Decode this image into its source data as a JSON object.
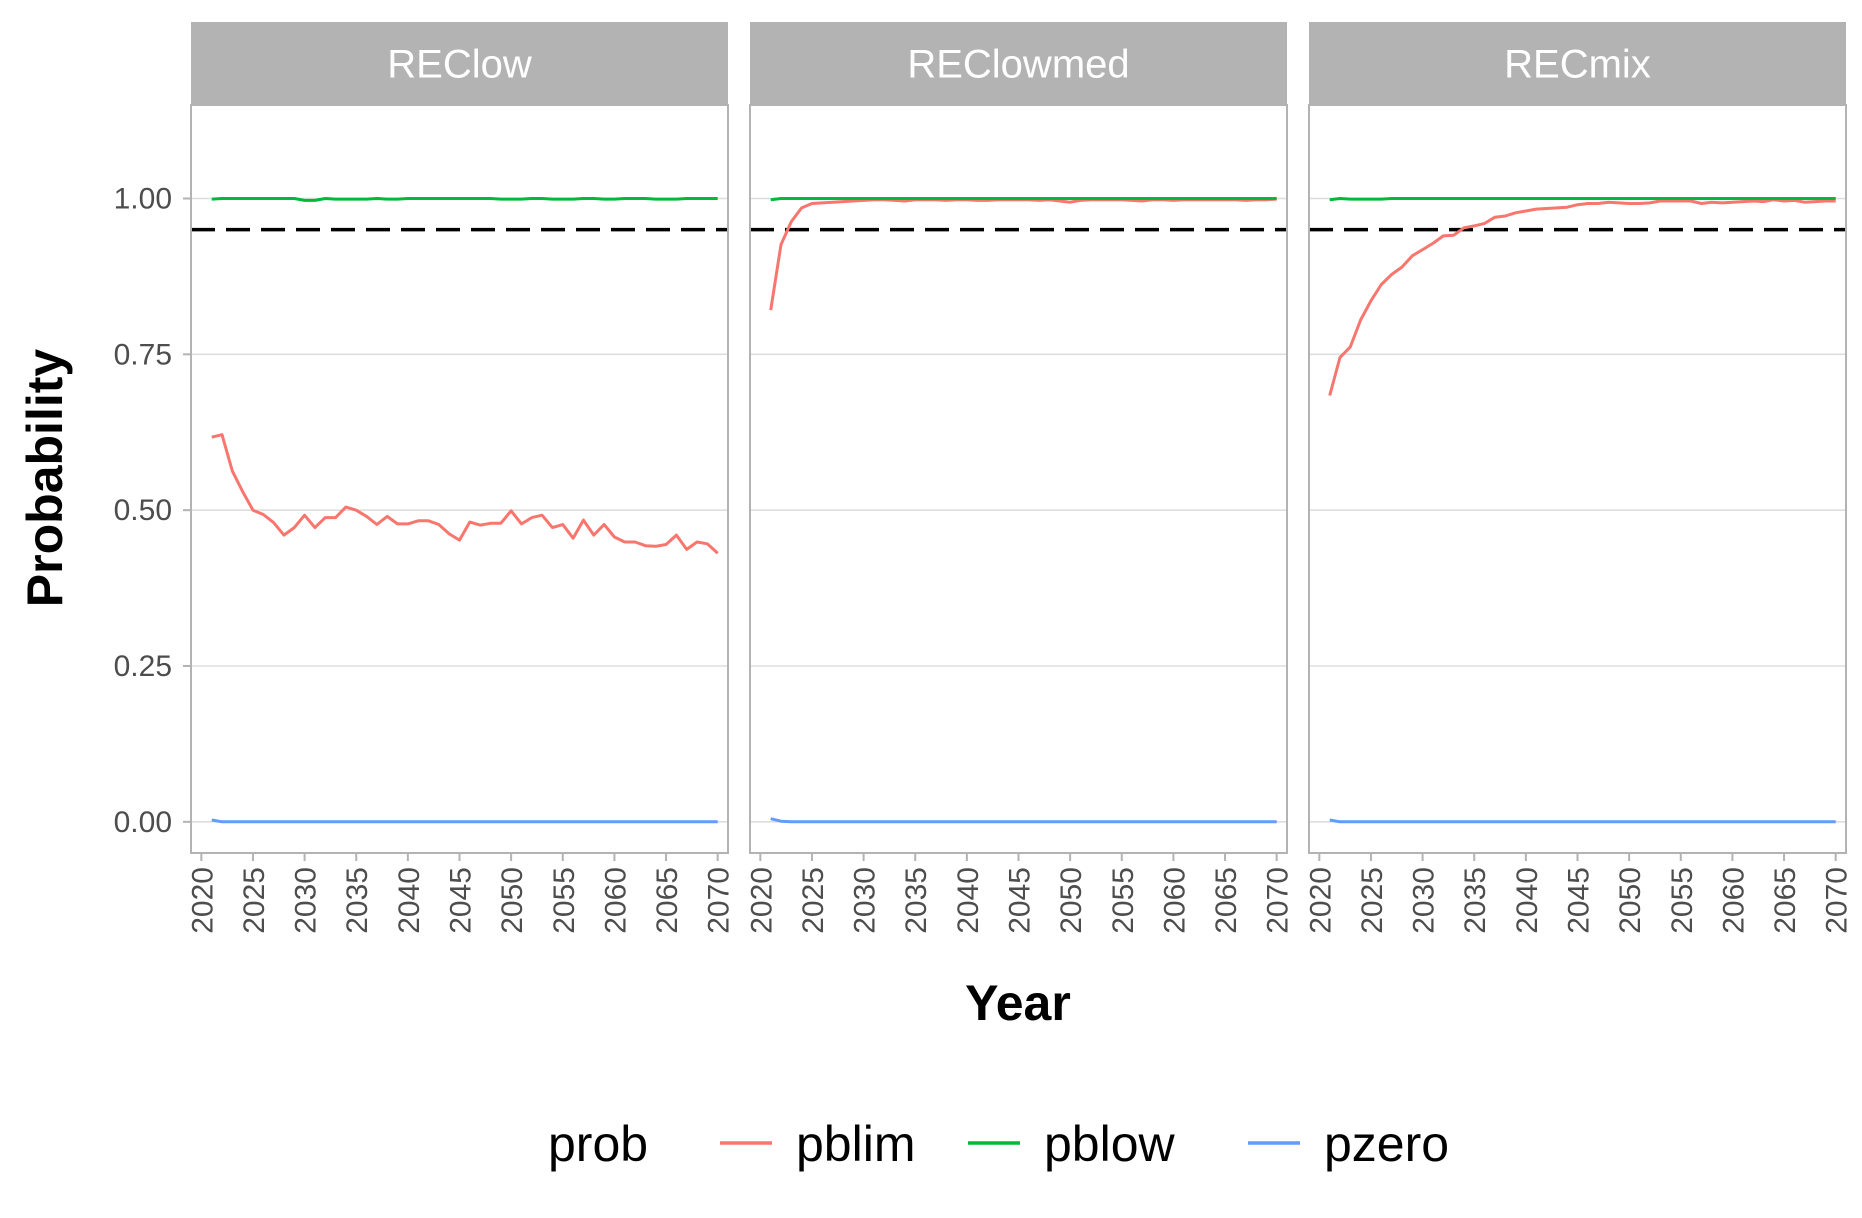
{
  "chart_data": {
    "type": "line",
    "panels": [
      "REClow",
      "REClowmed",
      "RECmix"
    ],
    "xlabel": "Year",
    "ylabel": "Probability",
    "xlim": [
      2019,
      2071
    ],
    "ylim": [
      -0.05,
      1.15
    ],
    "x_ticks": [
      "2020",
      "2025",
      "2030",
      "2035",
      "2040",
      "2045",
      "2050",
      "2055",
      "2060",
      "2065",
      "2070"
    ],
    "y_ticks": [
      "0.00",
      "0.25",
      "0.50",
      "0.75",
      "1.00"
    ],
    "reference_line": {
      "y": 0.95,
      "style": "dashed",
      "color": "#000000"
    },
    "grid": true,
    "legend": {
      "title": "prob",
      "position": "bottom",
      "entries": [
        "pblim",
        "pblow",
        "pzero"
      ]
    },
    "series_colors": {
      "pblim": "#F8766D",
      "pblow": "#00BA38",
      "pzero": "#619CFF"
    },
    "x": [
      2021,
      2022,
      2023,
      2024,
      2025,
      2026,
      2027,
      2028,
      2029,
      2030,
      2031,
      2032,
      2033,
      2034,
      2035,
      2036,
      2037,
      2038,
      2039,
      2040,
      2041,
      2042,
      2043,
      2044,
      2045,
      2046,
      2047,
      2048,
      2049,
      2050,
      2051,
      2052,
      2053,
      2054,
      2055,
      2056,
      2057,
      2058,
      2059,
      2060,
      2061,
      2062,
      2063,
      2064,
      2065,
      2066,
      2067,
      2068,
      2069,
      2070
    ],
    "facets": [
      {
        "panel": "REClow",
        "series": [
          {
            "name": "pblim",
            "values": [
              0.617,
              0.621,
              0.563,
              0.53,
              0.5,
              0.493,
              0.48,
              0.46,
              0.472,
              0.492,
              0.472,
              0.488,
              0.488,
              0.505,
              0.5,
              0.49,
              0.477,
              0.49,
              0.478,
              0.478,
              0.483,
              0.483,
              0.477,
              0.462,
              0.452,
              0.481,
              0.476,
              0.479,
              0.479,
              0.499,
              0.478,
              0.488,
              0.492,
              0.472,
              0.477,
              0.455,
              0.484,
              0.46,
              0.477,
              0.457,
              0.449,
              0.449,
              0.443,
              0.442,
              0.445,
              0.46,
              0.437,
              0.449,
              0.446,
              0.431
            ]
          },
          {
            "name": "pblow",
            "values": [
              0.999,
              1.0,
              1.0,
              1.0,
              1.0,
              1.0,
              1.0,
              1.0,
              1.0,
              0.997,
              0.997,
              1.0,
              0.999,
              0.999,
              0.999,
              0.999,
              1.0,
              0.999,
              0.999,
              1.0,
              1.0,
              1.0,
              1.0,
              1.0,
              1.0,
              1.0,
              1.0,
              1.0,
              0.999,
              0.999,
              0.999,
              1.0,
              1.0,
              0.999,
              0.999,
              0.999,
              1.0,
              1.0,
              0.999,
              0.999,
              1.0,
              1.0,
              1.0,
              0.999,
              0.999,
              0.999,
              1.0,
              1.0,
              1.0,
              1.0
            ]
          },
          {
            "name": "pzero",
            "values": [
              0.003,
              0,
              0,
              0,
              0,
              0,
              0,
              0,
              0,
              0,
              0,
              0,
              0,
              0,
              0,
              0,
              0,
              0,
              0,
              0,
              0,
              0,
              0,
              0,
              0,
              0,
              0,
              0,
              0,
              0,
              0,
              0,
              0,
              0,
              0,
              0,
              0,
              0,
              0,
              0,
              0,
              0,
              0,
              0,
              0,
              0,
              0,
              0,
              0,
              0
            ]
          }
        ]
      },
      {
        "panel": "REClowmed",
        "series": [
          {
            "name": "pblim",
            "values": [
              0.821,
              0.926,
              0.963,
              0.985,
              0.992,
              0.993,
              0.994,
              0.995,
              0.996,
              0.997,
              0.998,
              0.998,
              0.997,
              0.996,
              0.998,
              0.998,
              0.998,
              0.997,
              0.998,
              0.998,
              0.997,
              0.997,
              0.998,
              0.998,
              0.998,
              0.998,
              0.997,
              0.998,
              0.996,
              0.994,
              0.997,
              0.998,
              0.998,
              0.998,
              0.998,
              0.997,
              0.996,
              0.998,
              0.998,
              0.997,
              0.998,
              0.998,
              0.998,
              0.998,
              0.998,
              0.998,
              0.997,
              0.998,
              0.998,
              0.999
            ]
          },
          {
            "name": "pblow",
            "values": [
              0.998,
              1.0,
              1.0,
              1.0,
              1.0,
              1.0,
              1.0,
              1.0,
              1.0,
              1.0,
              1.0,
              1.0,
              1.0,
              1.0,
              1.0,
              1.0,
              1.0,
              1.0,
              1.0,
              1.0,
              1.0,
              1.0,
              1.0,
              1.0,
              1.0,
              1.0,
              1.0,
              1.0,
              1.0,
              1.0,
              1.0,
              1.0,
              1.0,
              1.0,
              1.0,
              1.0,
              1.0,
              1.0,
              1.0,
              1.0,
              1.0,
              1.0,
              1.0,
              1.0,
              1.0,
              1.0,
              1.0,
              1.0,
              1.0,
              1.0
            ]
          },
          {
            "name": "pzero",
            "values": [
              0.005,
              0.001,
              0,
              0,
              0,
              0,
              0,
              0,
              0,
              0,
              0,
              0,
              0,
              0,
              0,
              0,
              0,
              0,
              0,
              0,
              0,
              0,
              0,
              0,
              0,
              0,
              0,
              0,
              0,
              0,
              0,
              0,
              0,
              0,
              0,
              0,
              0,
              0,
              0,
              0,
              0,
              0,
              0,
              0,
              0,
              0,
              0,
              0,
              0,
              0
            ]
          }
        ]
      },
      {
        "panel": "RECmix",
        "series": [
          {
            "name": "pblim",
            "values": [
              0.684,
              0.745,
              0.762,
              0.805,
              0.836,
              0.862,
              0.878,
              0.89,
              0.908,
              0.918,
              0.928,
              0.94,
              0.941,
              0.953,
              0.956,
              0.96,
              0.97,
              0.972,
              0.977,
              0.98,
              0.983,
              0.984,
              0.985,
              0.986,
              0.99,
              0.992,
              0.992,
              0.994,
              0.993,
              0.992,
              0.992,
              0.993,
              0.996,
              0.996,
              0.996,
              0.996,
              0.992,
              0.994,
              0.993,
              0.994,
              0.995,
              0.996,
              0.995,
              0.998,
              0.996,
              0.997,
              0.994,
              0.995,
              0.996,
              0.996
            ]
          },
          {
            "name": "pblow",
            "values": [
              0.998,
              1.0,
              0.999,
              0.999,
              0.999,
              0.999,
              1.0,
              1.0,
              1.0,
              1.0,
              1.0,
              1.0,
              1.0,
              1.0,
              1.0,
              1.0,
              1.0,
              1.0,
              1.0,
              1.0,
              1.0,
              1.0,
              1.0,
              1.0,
              1.0,
              1.0,
              1.0,
              1.0,
              1.0,
              1.0,
              1.0,
              1.0,
              1.0,
              1.0,
              1.0,
              1.0,
              1.0,
              1.0,
              1.0,
              1.0,
              1.0,
              1.0,
              1.0,
              1.0,
              1.0,
              1.0,
              1.0,
              1.0,
              1.0,
              1.0
            ]
          },
          {
            "name": "pzero",
            "values": [
              0.003,
              0,
              0,
              0,
              0,
              0,
              0,
              0,
              0,
              0,
              0,
              0,
              0,
              0,
              0,
              0,
              0,
              0,
              0,
              0,
              0,
              0,
              0,
              0,
              0,
              0,
              0,
              0,
              0,
              0,
              0,
              0,
              0,
              0,
              0,
              0,
              0,
              0,
              0,
              0,
              0,
              0,
              0,
              0,
              0,
              0,
              0,
              0,
              0,
              0
            ]
          }
        ]
      }
    ]
  }
}
